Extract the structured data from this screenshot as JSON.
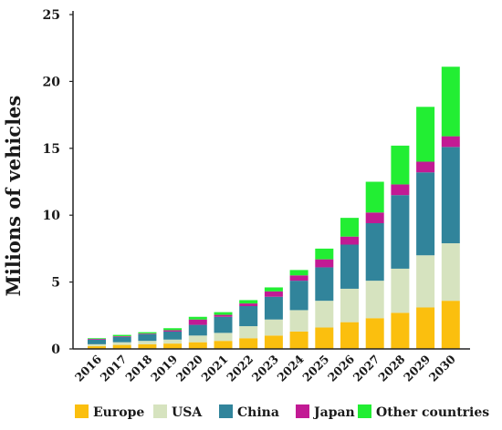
{
  "chart_data": {
    "type": "bar",
    "stacked": true,
    "ylabel": "Milions  of  vehicles",
    "xlabel": "",
    "ylim": [
      0,
      25
    ],
    "yticks": [
      0,
      5,
      10,
      15,
      20,
      25
    ],
    "grid": false,
    "legend_position": "bottom",
    "categories": [
      "2016",
      "2017",
      "2018",
      "2019",
      "2020",
      "2021",
      "2022",
      "2023",
      "2024",
      "2025",
      "2026",
      "2027",
      "2028",
      "2029",
      "2030"
    ],
    "series": [
      {
        "name": "Europe",
        "color": "#fbbf0e",
        "values": [
          0.2,
          0.3,
          0.35,
          0.4,
          0.5,
          0.6,
          0.8,
          1.0,
          1.3,
          1.6,
          2.0,
          2.3,
          2.7,
          3.1,
          3.6
        ]
      },
      {
        "name": "USA",
        "color": "#d6e3bf",
        "values": [
          0.15,
          0.2,
          0.25,
          0.3,
          0.5,
          0.6,
          0.9,
          1.2,
          1.6,
          2.0,
          2.5,
          2.8,
          3.3,
          3.9,
          4.3
        ]
      },
      {
        "name": "China",
        "color": "#31849b",
        "values": [
          0.35,
          0.4,
          0.5,
          0.6,
          0.8,
          1.2,
          1.5,
          1.7,
          2.2,
          2.5,
          3.3,
          4.3,
          5.5,
          6.2,
          7.2
        ]
      },
      {
        "name": "Japan",
        "color": "#c21a94",
        "values": [
          0.05,
          0.05,
          0.05,
          0.1,
          0.4,
          0.15,
          0.2,
          0.4,
          0.4,
          0.6,
          0.6,
          0.8,
          0.8,
          0.8,
          0.8
        ]
      },
      {
        "name": "Other countries",
        "color": "#22ee33",
        "values": [
          0.05,
          0.1,
          0.1,
          0.15,
          0.2,
          0.2,
          0.25,
          0.3,
          0.4,
          0.8,
          1.4,
          2.3,
          2.9,
          4.1,
          5.2
        ]
      }
    ]
  }
}
